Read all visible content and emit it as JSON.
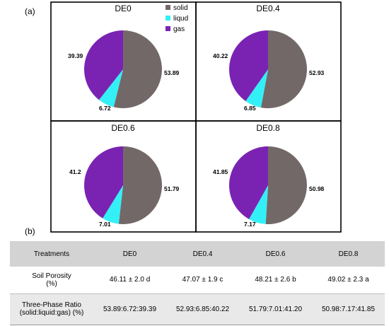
{
  "panel_a_label": "(a)",
  "panel_b_label": "(b)",
  "colors": {
    "solid": "#736868",
    "liquid": "#33f0f6",
    "gas": "#7a23b3"
  },
  "chart_data": {
    "type": "pie",
    "legend": {
      "entries": [
        "solid",
        "liqud",
        "gas"
      ],
      "placement": "top-right of first pie panel"
    },
    "pies": [
      {
        "title": "DE0",
        "slices": [
          {
            "name": "solid",
            "value": 53.89,
            "label": "53.89"
          },
          {
            "name": "liquid",
            "value": 6.72,
            "label": "6.72"
          },
          {
            "name": "gas",
            "value": 39.39,
            "label": "39.39"
          }
        ]
      },
      {
        "title": "DE0.4",
        "slices": [
          {
            "name": "solid",
            "value": 52.93,
            "label": "52.93"
          },
          {
            "name": "liquid",
            "value": 6.85,
            "label": "6.85"
          },
          {
            "name": "gas",
            "value": 40.22,
            "label": "40.22"
          }
        ]
      },
      {
        "title": "DE0.6",
        "slices": [
          {
            "name": "solid",
            "value": 51.79,
            "label": "51.79"
          },
          {
            "name": "liquid",
            "value": 7.01,
            "label": "7.01"
          },
          {
            "name": "gas",
            "value": 41.2,
            "label": "41.2"
          }
        ]
      },
      {
        "title": "DE0.8",
        "slices": [
          {
            "name": "solid",
            "value": 50.98,
            "label": "50.98"
          },
          {
            "name": "liquid",
            "value": 7.17,
            "label": "7.17"
          },
          {
            "name": "gas",
            "value": 41.85,
            "label": "41.85"
          }
        ]
      }
    ]
  },
  "table": {
    "header": [
      "Treatments",
      "DE0",
      "DE0.4",
      "DE0.6",
      "DE0.8"
    ],
    "rows": [
      {
        "label": "Soil Porosity",
        "sublabel": "(%)",
        "values": [
          "46.11 ± 2.0 d",
          "47.07 ± 1.9 c",
          "48.21 ± 2.6 b",
          "49.02 ± 2.3 a"
        ]
      },
      {
        "label": "Three-Phase Ratio",
        "sublabel": "(solid:liquid:gas) (%)",
        "values": [
          "53.89:6.72:39.39",
          "52.93:6.85:40.22",
          "51.79:7.01:41.20",
          "50.98:7.17:41.85"
        ]
      }
    ]
  }
}
